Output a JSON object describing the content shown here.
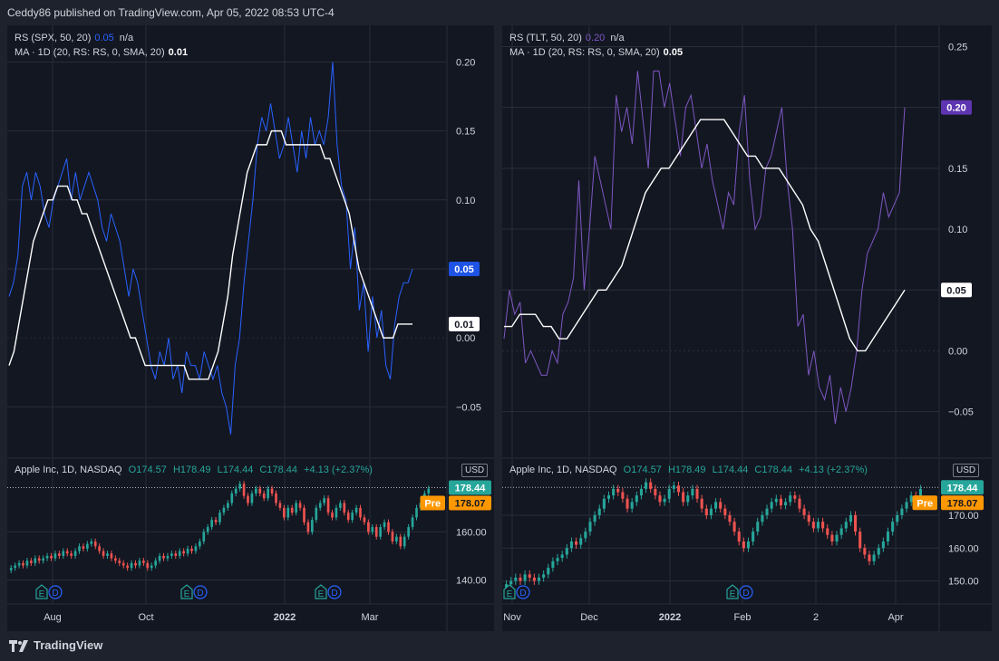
{
  "header": {
    "text": "Ceddy86 published on TradingView.com, Apr 05, 2022 08:53 UTC-4"
  },
  "footer": {
    "brand": "TradingView"
  },
  "colors": {
    "background": "#131722",
    "grid": "#2a2e39",
    "ma_line": "#ffffff",
    "spx_rs": "#2962ff",
    "tlt_rs": "#7e57c2",
    "up_candle": "#26a69a",
    "down_candle": "#ef5350",
    "pre_badge": "#ff9800"
  },
  "left": {
    "rs_legend": {
      "label": "RS (SPX, 50, 20)",
      "value": "0.05",
      "extra": "n/a"
    },
    "ma_legend": {
      "label": "MA · 1D (20, RS: RS, 0, SMA, 20)",
      "value": "0.01"
    },
    "price_legend": {
      "label": "Apple Inc, 1D, NASDAQ",
      "o": "O174.57",
      "h": "H178.49",
      "l": "L174.44",
      "c": "C178.44",
      "chg": "+4.13 (+2.37%)"
    },
    "currency": "USD",
    "rs_badge": "0.05",
    "ma_badge": "0.01",
    "price_badge": "178.44",
    "pre_label": "Pre",
    "pre_badge": "178.07",
    "earnings_labels": [
      "E",
      "D"
    ]
  },
  "right": {
    "rs_legend": {
      "label": "RS (TLT, 50, 20)",
      "value": "0.20",
      "extra": "n/a"
    },
    "ma_legend": {
      "label": "MA · 1D (20, RS: RS, 0, SMA, 20)",
      "value": "0.05"
    },
    "price_legend": {
      "label": "Apple Inc, 1D, NASDAQ",
      "o": "O174.57",
      "h": "H178.49",
      "l": "L174.44",
      "c": "C178.44",
      "chg": "+4.13 (+2.37%)"
    },
    "currency": "USD",
    "rs_badge": "0.20",
    "ma_badge": "0.05",
    "price_badge": "178.44",
    "pre_label": "Pre",
    "pre_badge": "178.07",
    "earnings_labels": [
      "E",
      "D"
    ]
  },
  "chart_data": [
    {
      "type": "line",
      "ylim": [
        -0.08,
        0.22
      ],
      "y_ticks": [
        "0.20",
        "0.15",
        "0.10",
        "0.05",
        "0.00",
        "−0.05"
      ],
      "x_ticks": [
        "Aug",
        "Oct",
        "2022",
        "Mar"
      ],
      "series": [
        {
          "name": "RS (SPX, 50, 20)",
          "values": [
            0.03,
            0.04,
            0.06,
            0.11,
            0.12,
            0.1,
            0.12,
            0.11,
            0.09,
            0.08,
            0.1,
            0.11,
            0.12,
            0.13,
            0.1,
            0.12,
            0.1,
            0.11,
            0.12,
            0.11,
            0.1,
            0.08,
            0.07,
            0.09,
            0.08,
            0.07,
            0.05,
            0.03,
            0.05,
            0.04,
            0.02,
            0.0,
            -0.02,
            -0.03,
            -0.01,
            -0.02,
            0.0,
            -0.03,
            -0.02,
            -0.04,
            -0.01,
            -0.02,
            -0.02,
            -0.03,
            -0.01,
            -0.02,
            -0.03,
            -0.02,
            -0.04,
            -0.05,
            -0.07,
            -0.02,
            0.0,
            0.04,
            0.07,
            0.1,
            0.14,
            0.16,
            0.15,
            0.17,
            0.15,
            0.13,
            0.14,
            0.16,
            0.14,
            0.12,
            0.15,
            0.13,
            0.16,
            0.14,
            0.15,
            0.14,
            0.16,
            0.2,
            0.14,
            0.11,
            0.1,
            0.05,
            0.08,
            0.02,
            0.04,
            -0.01,
            0.03,
            0.0,
            0.02,
            -0.02,
            -0.03,
            0.01,
            0.03,
            0.04,
            0.04,
            0.05
          ]
        },
        {
          "name": "MA · 1D (20, RS: RS, 0, SMA, 20)",
          "values": [
            -0.02,
            -0.01,
            0.01,
            0.03,
            0.05,
            0.07,
            0.08,
            0.09,
            0.1,
            0.1,
            0.11,
            0.11,
            0.11,
            0.1,
            0.1,
            0.09,
            0.09,
            0.08,
            0.07,
            0.06,
            0.05,
            0.04,
            0.03,
            0.02,
            0.01,
            0.0,
            0.0,
            -0.01,
            -0.02,
            -0.02,
            -0.02,
            -0.02,
            -0.02,
            -0.02,
            -0.02,
            -0.02,
            -0.02,
            -0.03,
            -0.03,
            -0.03,
            -0.03,
            -0.03,
            -0.02,
            -0.01,
            0.01,
            0.03,
            0.06,
            0.08,
            0.1,
            0.12,
            0.13,
            0.14,
            0.14,
            0.14,
            0.15,
            0.15,
            0.15,
            0.14,
            0.14,
            0.14,
            0.14,
            0.14,
            0.14,
            0.14,
            0.14,
            0.13,
            0.13,
            0.12,
            0.11,
            0.1,
            0.09,
            0.07,
            0.05,
            0.04,
            0.03,
            0.02,
            0.01,
            0.0,
            0.0,
            0.0,
            0.01,
            0.01,
            0.01,
            0.01
          ]
        }
      ]
    },
    {
      "type": "line",
      "ylim": [
        -0.08,
        0.26
      ],
      "y_ticks": [
        "0.25",
        "0.20",
        "0.15",
        "0.10",
        "0.05",
        "0.00",
        "−0.05"
      ],
      "x_ticks": [
        "Nov",
        "Dec",
        "2022",
        "Feb",
        "2",
        "Apr"
      ],
      "series": [
        {
          "name": "RS (TLT, 50, 20)",
          "values": [
            0.01,
            0.05,
            0.03,
            0.04,
            -0.01,
            0.0,
            -0.01,
            -0.02,
            -0.02,
            0.0,
            -0.01,
            0.03,
            0.04,
            0.06,
            0.14,
            0.05,
            0.1,
            0.16,
            0.14,
            0.12,
            0.1,
            0.21,
            0.18,
            0.2,
            0.17,
            0.23,
            0.19,
            0.15,
            0.23,
            0.23,
            0.2,
            0.22,
            0.19,
            0.16,
            0.2,
            0.21,
            0.18,
            0.15,
            0.17,
            0.14,
            0.12,
            0.1,
            0.13,
            0.12,
            0.18,
            0.21,
            0.14,
            0.1,
            0.11,
            0.15,
            0.16,
            0.18,
            0.2,
            0.14,
            0.1,
            0.02,
            0.03,
            -0.02,
            0.0,
            -0.03,
            -0.04,
            -0.02,
            -0.06,
            -0.03,
            -0.05,
            -0.03,
            0.0,
            0.05,
            0.08,
            0.09,
            0.1,
            0.13,
            0.11,
            0.12,
            0.13,
            0.2
          ]
        },
        {
          "name": "MA · 1D (20, RS: RS, 0, SMA, 20)",
          "values": [
            0.02,
            0.02,
            0.03,
            0.03,
            0.03,
            0.02,
            0.02,
            0.01,
            0.01,
            0.02,
            0.03,
            0.04,
            0.05,
            0.05,
            0.06,
            0.07,
            0.09,
            0.11,
            0.13,
            0.14,
            0.15,
            0.15,
            0.16,
            0.17,
            0.18,
            0.19,
            0.19,
            0.19,
            0.19,
            0.18,
            0.17,
            0.16,
            0.16,
            0.15,
            0.15,
            0.15,
            0.14,
            0.13,
            0.12,
            0.1,
            0.09,
            0.07,
            0.05,
            0.03,
            0.01,
            0.0,
            0.0,
            0.01,
            0.02,
            0.03,
            0.04,
            0.05
          ]
        }
      ]
    },
    {
      "type": "candlestick",
      "ylim": [
        130,
        182
      ],
      "y_ticks": [
        "160.00",
        "140.00"
      ],
      "x_ticks": [
        "Aug",
        "Oct",
        "2022",
        "Mar"
      ],
      "last_price": 178.44,
      "pre_price": 178.07,
      "closes": [
        145,
        146,
        147,
        146,
        148,
        147,
        149,
        148,
        149,
        150,
        149,
        151,
        150,
        152,
        151,
        150,
        152,
        154,
        153,
        155,
        156,
        154,
        152,
        150,
        151,
        149,
        148,
        147,
        146,
        145,
        147,
        146,
        148,
        147,
        145,
        146,
        148,
        150,
        149,
        150,
        151,
        150,
        152,
        151,
        153,
        152,
        154,
        156,
        160,
        162,
        165,
        164,
        168,
        170,
        172,
        176,
        178,
        180,
        175,
        172,
        176,
        178,
        176,
        174,
        178,
        176,
        172,
        170,
        166,
        170,
        168,
        172,
        170,
        164,
        160,
        165,
        170,
        172,
        174,
        168,
        166,
        170,
        172,
        168,
        165,
        168,
        170,
        166,
        164,
        160,
        162,
        158,
        162,
        164,
        160,
        156,
        158,
        154,
        158,
        162,
        166,
        170,
        172,
        176,
        178
      ]
    },
    {
      "type": "candlestick",
      "ylim": [
        143,
        181
      ],
      "y_ticks": [
        "170.00",
        "160.00",
        "150.00"
      ],
      "x_ticks": [
        "Nov",
        "Dec",
        "2022",
        "Feb",
        "2",
        "Apr"
      ],
      "last_price": 178.44,
      "pre_price": 178.07,
      "closes": [
        149,
        150,
        151,
        150,
        152,
        151,
        150,
        151,
        152,
        154,
        156,
        157,
        158,
        160,
        162,
        161,
        163,
        165,
        168,
        170,
        172,
        175,
        176,
        178,
        177,
        175,
        172,
        174,
        176,
        178,
        180,
        178,
        176,
        174,
        175,
        178,
        179,
        177,
        174,
        176,
        178,
        175,
        172,
        170,
        172,
        174,
        172,
        170,
        168,
        165,
        162,
        160,
        162,
        165,
        168,
        170,
        172,
        174,
        175,
        173,
        174,
        176,
        175,
        172,
        170,
        168,
        166,
        168,
        166,
        164,
        162,
        164,
        166,
        168,
        170,
        165,
        160,
        158,
        156,
        158,
        160,
        162,
        165,
        168,
        170,
        172,
        174,
        176,
        175,
        178
      ]
    }
  ]
}
